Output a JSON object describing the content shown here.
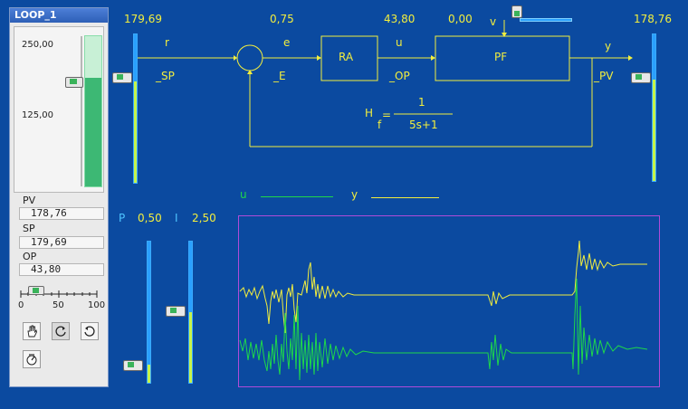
{
  "panel": {
    "title": "LOOP_1",
    "scale_top": "250,00",
    "scale_mid": "125,00",
    "pv_label": "PV",
    "pv_value": "178,76",
    "sp_label": "SP",
    "sp_value": "179,69",
    "op_label": "OP",
    "op_value": "43,80",
    "slider_ticks": [
      "0",
      "50",
      "100"
    ],
    "bar_level_fraction": 0.72,
    "slider_value": 20,
    "tools": [
      "hand-icon",
      "rotate-ccw-icon",
      "rotate-cw-icon",
      "gauge-icon"
    ]
  },
  "diagram": {
    "sp_value": "179,69",
    "e_value": "0,75",
    "op_value": "43,80",
    "v_value": "0,00",
    "pv_value": "178,76",
    "label_r": "r",
    "label_sp": "_SP",
    "label_e": "e",
    "label_e2": "_E",
    "label_u": "u",
    "label_op": "_OP",
    "label_v": "v",
    "label_y": "y",
    "label_pv": "_PV",
    "block_ra": "RA",
    "block_pf": "PF",
    "tf_h": "H",
    "tf_sub": "f",
    "tf_eq": "=",
    "tf_num": "1",
    "tf_den": "5s+1"
  },
  "params": {
    "p_label": "P",
    "p_value": "0,50",
    "i_label": "I",
    "i_value": "2,50"
  },
  "legend": {
    "u_label": "u",
    "y_label": "y"
  },
  "colors": {
    "background": "#0b4aa0",
    "yellow": "#f2ee3e",
    "cyan": "#4ec4ff",
    "green": "#1ed84a",
    "plot_border": "#b04bd8"
  }
}
